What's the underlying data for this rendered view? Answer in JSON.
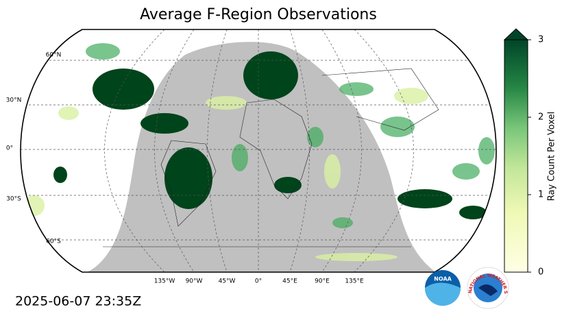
{
  "map": {
    "title": "Average F-Region Observations",
    "lat_labels": [
      "60°N",
      "30°N",
      "0°",
      "30°S",
      "60°S"
    ],
    "lon_labels": [
      "135°W",
      "90°W",
      "45°W",
      "0°",
      "45°E",
      "90°E",
      "135°E"
    ]
  },
  "colorbar": {
    "label": "Ray Count Per Voxel",
    "range": [
      0,
      3
    ],
    "ticks": [
      0,
      1,
      2,
      3
    ]
  },
  "timestamp": "2025-06-07 23:35Z",
  "logos": {
    "noaa": "NOAA",
    "nws": "NATIONAL WEATHER SERVICE"
  }
}
